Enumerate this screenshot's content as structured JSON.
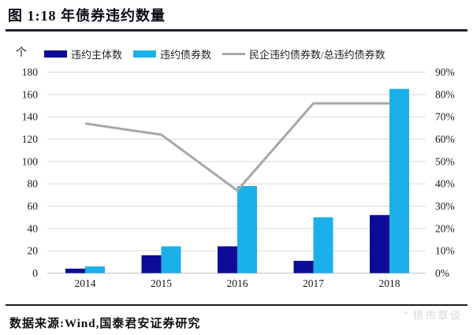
{
  "header": {
    "title": "图 1:18 年债券违约数量"
  },
  "footer": {
    "source": "数据来源:Wind,国泰君安证券研究",
    "watermark": "债市覃谈"
  },
  "colors": {
    "entities_bar": "#0C0C96",
    "bonds_bar": "#1CB0EA",
    "ratio_line": "#A8A8A8",
    "gridline": "#D9D9D9"
  },
  "chart_data": {
    "type": "bar",
    "subtype": "grouped bars with secondary-axis line",
    "unit_label": "个",
    "categories": [
      "2014",
      "2015",
      "2016",
      "2017",
      "2018"
    ],
    "series": [
      {
        "name": "违约主体数",
        "type": "bar",
        "axis": "left",
        "color": "#0C0C96",
        "values": [
          4,
          16,
          24,
          11,
          52
        ]
      },
      {
        "name": "违约债券数",
        "type": "bar",
        "axis": "left",
        "color": "#1CB0EA",
        "values": [
          6,
          24,
          78,
          50,
          165
        ]
      },
      {
        "name": "民企违约债券数/总违约债券数",
        "type": "line",
        "axis": "right",
        "color": "#A8A8A8",
        "values": [
          67,
          62,
          37,
          76,
          76
        ]
      }
    ],
    "left_axis": {
      "min": 0,
      "max": 180,
      "step": 20,
      "ticks": [
        "180",
        "160",
        "140",
        "120",
        "100",
        "80",
        "60",
        "40",
        "20",
        "0"
      ]
    },
    "right_axis": {
      "min": 0,
      "max": 90,
      "step": 10,
      "ticks": [
        "90%",
        "80%",
        "70%",
        "60%",
        "50%",
        "40%",
        "30%",
        "20%",
        "10%",
        "0%"
      ]
    },
    "grid": true,
    "legend_position": "top"
  }
}
